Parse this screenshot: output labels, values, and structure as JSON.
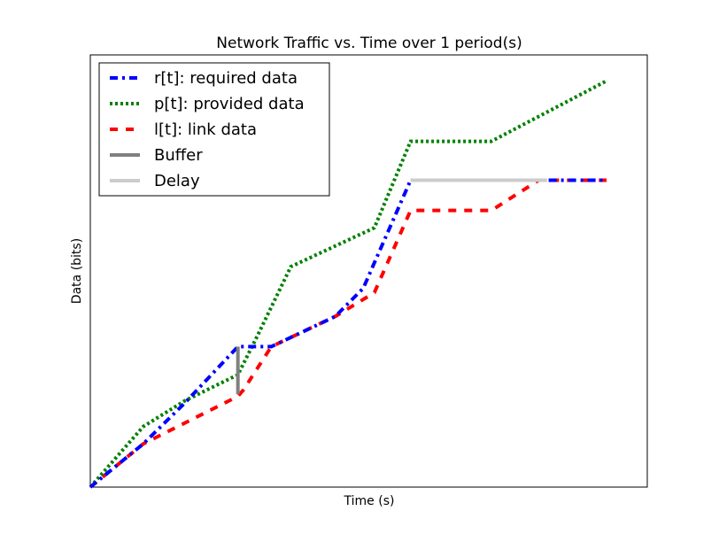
{
  "chart_data": {
    "type": "line",
    "title": "Network Traffic vs. Time over 1 period(s)",
    "xlabel": "Time (s)",
    "ylabel": "Data (bits)",
    "xlim": [
      0,
      100
    ],
    "ylim": [
      0,
      100
    ],
    "xticks_shown": false,
    "yticks_shown": false,
    "grid": false,
    "legend_position": "top-left",
    "series": [
      {
        "name": "r[t]: required data",
        "color": "#0000ff",
        "style": "dashdot",
        "x": [
          0,
          9.5,
          17,
          26.5,
          32.5,
          44,
          49,
          57.5,
          82,
          87.3,
          92.7
        ],
        "y": [
          0,
          10,
          19.5,
          32.5,
          32.5,
          39.5,
          46,
          71,
          71,
          71,
          71
        ]
      },
      {
        "name": "p[t]: provided data",
        "color": "#008000",
        "style": "dotted",
        "x": [
          0,
          9.5,
          17,
          26.5,
          30,
          36,
          51,
          57.5,
          72,
          92.7
        ],
        "y": [
          0,
          14,
          20,
          26,
          35,
          51,
          60,
          80,
          80,
          94
        ]
      },
      {
        "name": "l[t]: link data",
        "color": "#ff0000",
        "style": "dashed",
        "x": [
          0,
          9.5,
          26.5,
          27.5,
          32.5,
          44,
          51,
          57.5,
          72,
          80.5,
          92.7
        ],
        "y": [
          0,
          10,
          21,
          22.5,
          32.5,
          39.5,
          45,
          64,
          64,
          71,
          71
        ]
      }
    ],
    "annotations": [
      {
        "name": "Buffer",
        "color": "#808080",
        "x": [
          26.5,
          26.5
        ],
        "y": [
          21.5,
          32.5
        ]
      },
      {
        "name": "Delay",
        "color": "#cccccc",
        "x": [
          57.5,
          82
        ],
        "y": [
          71,
          71
        ]
      }
    ]
  }
}
